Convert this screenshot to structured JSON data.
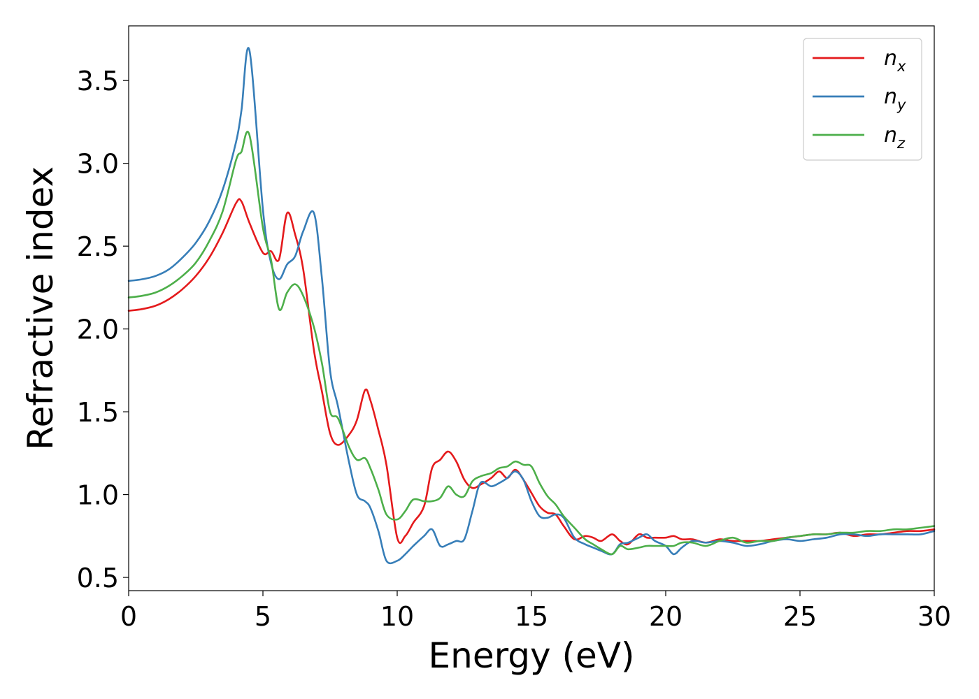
{
  "chart_data": {
    "type": "line",
    "xlabel": "Energy (eV)",
    "ylabel": "Refractive index",
    "xlim": [
      0,
      30
    ],
    "ylim": [
      0.42,
      3.83
    ],
    "x_ticks": [
      0,
      5,
      10,
      15,
      20,
      25,
      30
    ],
    "y_ticks": [
      0.5,
      1.0,
      1.5,
      2.0,
      2.5,
      3.0,
      3.5
    ],
    "x_tick_labels": [
      "0",
      "5",
      "10",
      "15",
      "20",
      "25",
      "30"
    ],
    "y_tick_labels": [
      "0.5",
      "1.0",
      "1.5",
      "2.0",
      "2.5",
      "3.0",
      "3.5"
    ],
    "grid": false,
    "legend_position": "top-right",
    "x": [
      0,
      0.5,
      1,
      1.5,
      2,
      2.5,
      3,
      3.5,
      4,
      4.2,
      4.5,
      5,
      5.3,
      5.6,
      5.9,
      6.2,
      6.5,
      6.9,
      7.2,
      7.5,
      7.8,
      8.2,
      8.5,
      8.8,
      9.0,
      9.3,
      9.6,
      10.0,
      10.3,
      10.6,
      11.0,
      11.3,
      11.6,
      11.9,
      12.2,
      12.5,
      12.8,
      13.1,
      13.5,
      13.8,
      14.1,
      14.4,
      14.7,
      15.0,
      15.3,
      15.6,
      15.9,
      16.2,
      16.6,
      17.0,
      17.3,
      17.6,
      18.0,
      18.3,
      18.6,
      19.0,
      19.3,
      19.6,
      20.0,
      20.3,
      20.6,
      21.0,
      21.5,
      22.0,
      22.5,
      23.0,
      23.5,
      24.0,
      24.5,
      25.0,
      25.5,
      26.0,
      26.5,
      27.0,
      27.5,
      28.0,
      28.5,
      29.0,
      29.5,
      30.0
    ],
    "series": [
      {
        "name": "n",
        "subscript": "x",
        "color": "#e41a1c",
        "values": [
          2.11,
          2.12,
          2.14,
          2.18,
          2.24,
          2.32,
          2.43,
          2.58,
          2.76,
          2.77,
          2.64,
          2.46,
          2.47,
          2.42,
          2.7,
          2.57,
          2.36,
          1.87,
          1.62,
          1.37,
          1.3,
          1.36,
          1.45,
          1.63,
          1.57,
          1.39,
          1.18,
          0.74,
          0.75,
          0.83,
          0.93,
          1.16,
          1.21,
          1.26,
          1.2,
          1.09,
          1.04,
          1.06,
          1.1,
          1.14,
          1.1,
          1.15,
          1.09,
          1.01,
          0.93,
          0.89,
          0.88,
          0.81,
          0.73,
          0.75,
          0.74,
          0.72,
          0.76,
          0.72,
          0.7,
          0.76,
          0.74,
          0.74,
          0.74,
          0.75,
          0.73,
          0.73,
          0.71,
          0.73,
          0.72,
          0.72,
          0.72,
          0.73,
          0.74,
          0.75,
          0.76,
          0.76,
          0.77,
          0.75,
          0.76,
          0.76,
          0.77,
          0.78,
          0.78,
          0.79
        ]
      },
      {
        "name": "n",
        "subscript": "y",
        "color": "#377eb8",
        "values": [
          2.29,
          2.3,
          2.32,
          2.36,
          2.43,
          2.52,
          2.65,
          2.84,
          3.13,
          3.32,
          3.68,
          2.72,
          2.4,
          2.3,
          2.39,
          2.44,
          2.59,
          2.7,
          2.3,
          1.75,
          1.53,
          1.2,
          1.0,
          0.96,
          0.92,
          0.78,
          0.6,
          0.6,
          0.64,
          0.69,
          0.75,
          0.79,
          0.69,
          0.7,
          0.72,
          0.73,
          0.9,
          1.07,
          1.05,
          1.07,
          1.1,
          1.14,
          1.09,
          0.96,
          0.87,
          0.86,
          0.88,
          0.86,
          0.74,
          0.7,
          0.68,
          0.66,
          0.64,
          0.7,
          0.71,
          0.74,
          0.76,
          0.72,
          0.69,
          0.64,
          0.68,
          0.72,
          0.71,
          0.72,
          0.71,
          0.69,
          0.7,
          0.72,
          0.73,
          0.72,
          0.73,
          0.74,
          0.76,
          0.76,
          0.75,
          0.76,
          0.76,
          0.76,
          0.76,
          0.78
        ]
      },
      {
        "name": "n",
        "subscript": "z",
        "color": "#4daf4a",
        "values": [
          2.19,
          2.2,
          2.22,
          2.26,
          2.32,
          2.4,
          2.53,
          2.71,
          3.02,
          3.07,
          3.17,
          2.61,
          2.42,
          2.12,
          2.22,
          2.27,
          2.2,
          2.01,
          1.79,
          1.5,
          1.46,
          1.29,
          1.21,
          1.22,
          1.16,
          1.03,
          0.88,
          0.85,
          0.9,
          0.97,
          0.96,
          0.96,
          0.98,
          1.05,
          1.0,
          0.99,
          1.08,
          1.11,
          1.13,
          1.16,
          1.17,
          1.2,
          1.18,
          1.17,
          1.07,
          0.99,
          0.94,
          0.87,
          0.8,
          0.73,
          0.7,
          0.67,
          0.64,
          0.69,
          0.67,
          0.68,
          0.69,
          0.69,
          0.69,
          0.69,
          0.71,
          0.71,
          0.69,
          0.72,
          0.74,
          0.71,
          0.72,
          0.72,
          0.74,
          0.75,
          0.76,
          0.76,
          0.77,
          0.77,
          0.78,
          0.78,
          0.79,
          0.79,
          0.8,
          0.81
        ]
      }
    ]
  }
}
